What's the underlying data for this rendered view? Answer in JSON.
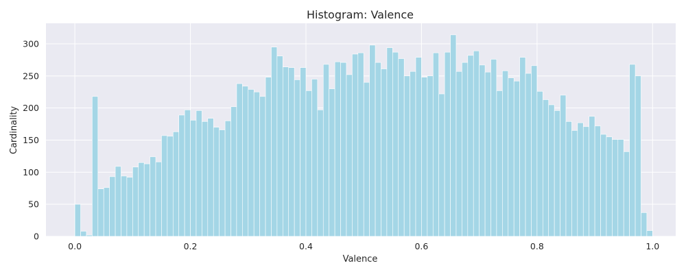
{
  "chart_data": {
    "type": "bar",
    "title": "Histogram: Valence",
    "xlabel": "Valence",
    "ylabel": "Cardinality",
    "xlim": [
      -0.05,
      1.04
    ],
    "ylim": [
      0,
      332
    ],
    "x_ticks": [
      0.0,
      0.2,
      0.4,
      0.6,
      0.8,
      1.0
    ],
    "x_tick_labels": [
      "0.0",
      "0.2",
      "0.4",
      "0.6",
      "0.8",
      "1.0"
    ],
    "y_ticks": [
      0,
      50,
      100,
      150,
      200,
      250,
      300
    ],
    "y_tick_labels": [
      "0",
      "50",
      "100",
      "150",
      "200",
      "250",
      "300"
    ],
    "grid": true,
    "bin_start": 0.0,
    "bin_width": 0.01,
    "bar_color": "#a4d6e6",
    "background_color": "#eaeaf2",
    "values": [
      50,
      8,
      2,
      218,
      74,
      76,
      93,
      109,
      94,
      92,
      108,
      115,
      113,
      124,
      116,
      157,
      156,
      163,
      189,
      197,
      181,
      196,
      179,
      184,
      170,
      166,
      180,
      202,
      238,
      234,
      229,
      225,
      218,
      248,
      295,
      281,
      264,
      263,
      244,
      263,
      227,
      245,
      197,
      268,
      230,
      272,
      271,
      252,
      284,
      286,
      240,
      298,
      271,
      261,
      294,
      287,
      277,
      250,
      257,
      279,
      248,
      250,
      286,
      222,
      287,
      314,
      257,
      271,
      282,
      289,
      267,
      256,
      276,
      227,
      258,
      247,
      242,
      279,
      254,
      266,
      226,
      213,
      205,
      196,
      220,
      179,
      165,
      177,
      171,
      187,
      172,
      159,
      155,
      151,
      151,
      132,
      268,
      250,
      37,
      9
    ]
  }
}
